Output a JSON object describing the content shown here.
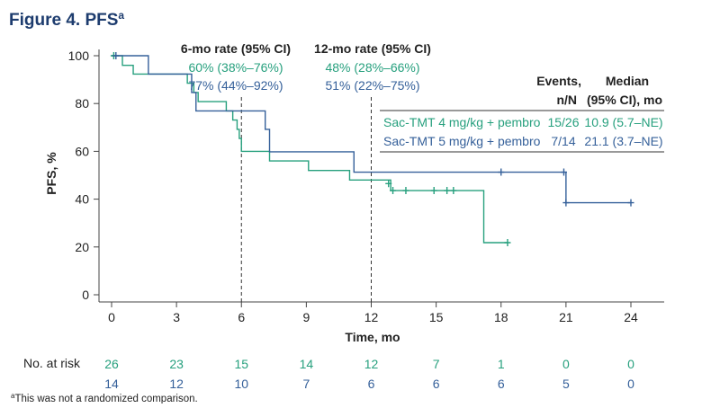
{
  "figure": {
    "title": "Figure 4. PFS",
    "title_superscript": "a",
    "footnote_marker": "a",
    "footnote": "This was not a randomized comparison."
  },
  "colors": {
    "teal": "#27a07e",
    "blue": "#35609a",
    "axis": "#444444",
    "text": "#222222",
    "title": "#1d3c6e"
  },
  "chart_data": {
    "type": "line",
    "subtype": "kaplan-meier-step",
    "xlabel": "Time, mo",
    "ylabel": "PFS, %",
    "xlim": [
      0,
      25.5
    ],
    "ylim": [
      0,
      105
    ],
    "x_ticks": [
      0,
      3,
      6,
      9,
      12,
      15,
      18,
      21,
      24
    ],
    "x_tick_labels": [
      "0",
      "3",
      "6",
      "9",
      "12",
      "15",
      "18",
      "21",
      "24"
    ],
    "y_ticks": [
      0,
      20,
      40,
      60,
      80,
      100
    ],
    "y_tick_labels": [
      "0",
      "20",
      "40",
      "60",
      "80",
      "100"
    ],
    "reference_lines_x": [
      6,
      12
    ],
    "series": [
      {
        "name": "Sac-TMT 4 mg/kg + pembro",
        "color": "#27a07e",
        "steps": [
          [
            0,
            100
          ],
          [
            0.5,
            96
          ],
          [
            1.0,
            92.3
          ],
          [
            3.5,
            88.5
          ],
          [
            3.8,
            84.6
          ],
          [
            4.0,
            80.8
          ],
          [
            5.3,
            76.9
          ],
          [
            5.6,
            73.1
          ],
          [
            5.8,
            69.2
          ],
          [
            5.9,
            65.4
          ],
          [
            6.0,
            60
          ],
          [
            7.3,
            56
          ],
          [
            9.1,
            52
          ],
          [
            11.0,
            48
          ],
          [
            12.9,
            43.6
          ],
          [
            17.2,
            21.8
          ],
          [
            18.3,
            21.8
          ]
        ],
        "censored": [
          [
            0.1,
            100
          ],
          [
            12.8,
            46.5
          ],
          [
            13.0,
            43.6
          ],
          [
            13.6,
            43.6
          ],
          [
            14.9,
            43.6
          ],
          [
            15.5,
            43.6
          ],
          [
            15.8,
            43.6
          ],
          [
            18.3,
            21.8
          ]
        ],
        "events": "15/26",
        "median": "10.9 (5.7–NE)"
      },
      {
        "name": "Sac-TMT 5 mg/kg + pembro",
        "color": "#35609a",
        "steps": [
          [
            0,
            100
          ],
          [
            1.7,
            92.3
          ],
          [
            3.7,
            84.6
          ],
          [
            3.9,
            76.9
          ],
          [
            7.1,
            69.2
          ],
          [
            7.3,
            59.8
          ],
          [
            11.2,
            51.3
          ],
          [
            21.0,
            38.5
          ],
          [
            24.0,
            38.5
          ]
        ],
        "censored": [
          [
            0.2,
            100
          ],
          [
            18.0,
            51.3
          ],
          [
            20.9,
            51.3
          ],
          [
            21.0,
            38.5
          ],
          [
            24.0,
            38.5
          ]
        ],
        "events": "7/14",
        "median": "21.1 (3.7–NE)"
      }
    ],
    "rate_annotations": {
      "six_month": {
        "header": "6-mo rate (95% CI)",
        "rows": [
          "60% (38%–76%)",
          "77% (44%–92%)"
        ]
      },
      "twelve_month": {
        "header": "12-mo rate (95% CI)",
        "rows": [
          "48% (28%–66%)",
          "51% (22%–75%)"
        ]
      }
    },
    "legend_table": {
      "placement": "top-right",
      "header_events": [
        "Events,",
        "n/N"
      ],
      "header_median": [
        "Median",
        "(95% CI), mo"
      ]
    },
    "at_risk": {
      "label": "No. at risk",
      "times": [
        0,
        3,
        6,
        9,
        12,
        15,
        18,
        21,
        24
      ],
      "rows": [
        {
          "series": "Sac-TMT 4 mg/kg + pembro",
          "values": [
            "26",
            "23",
            "15",
            "14",
            "12",
            "7",
            "1",
            "0",
            "0"
          ]
        },
        {
          "series": "Sac-TMT 5 mg/kg + pembro",
          "values": [
            "14",
            "12",
            "10",
            "7",
            "6",
            "6",
            "6",
            "5",
            "0"
          ]
        }
      ]
    }
  }
}
